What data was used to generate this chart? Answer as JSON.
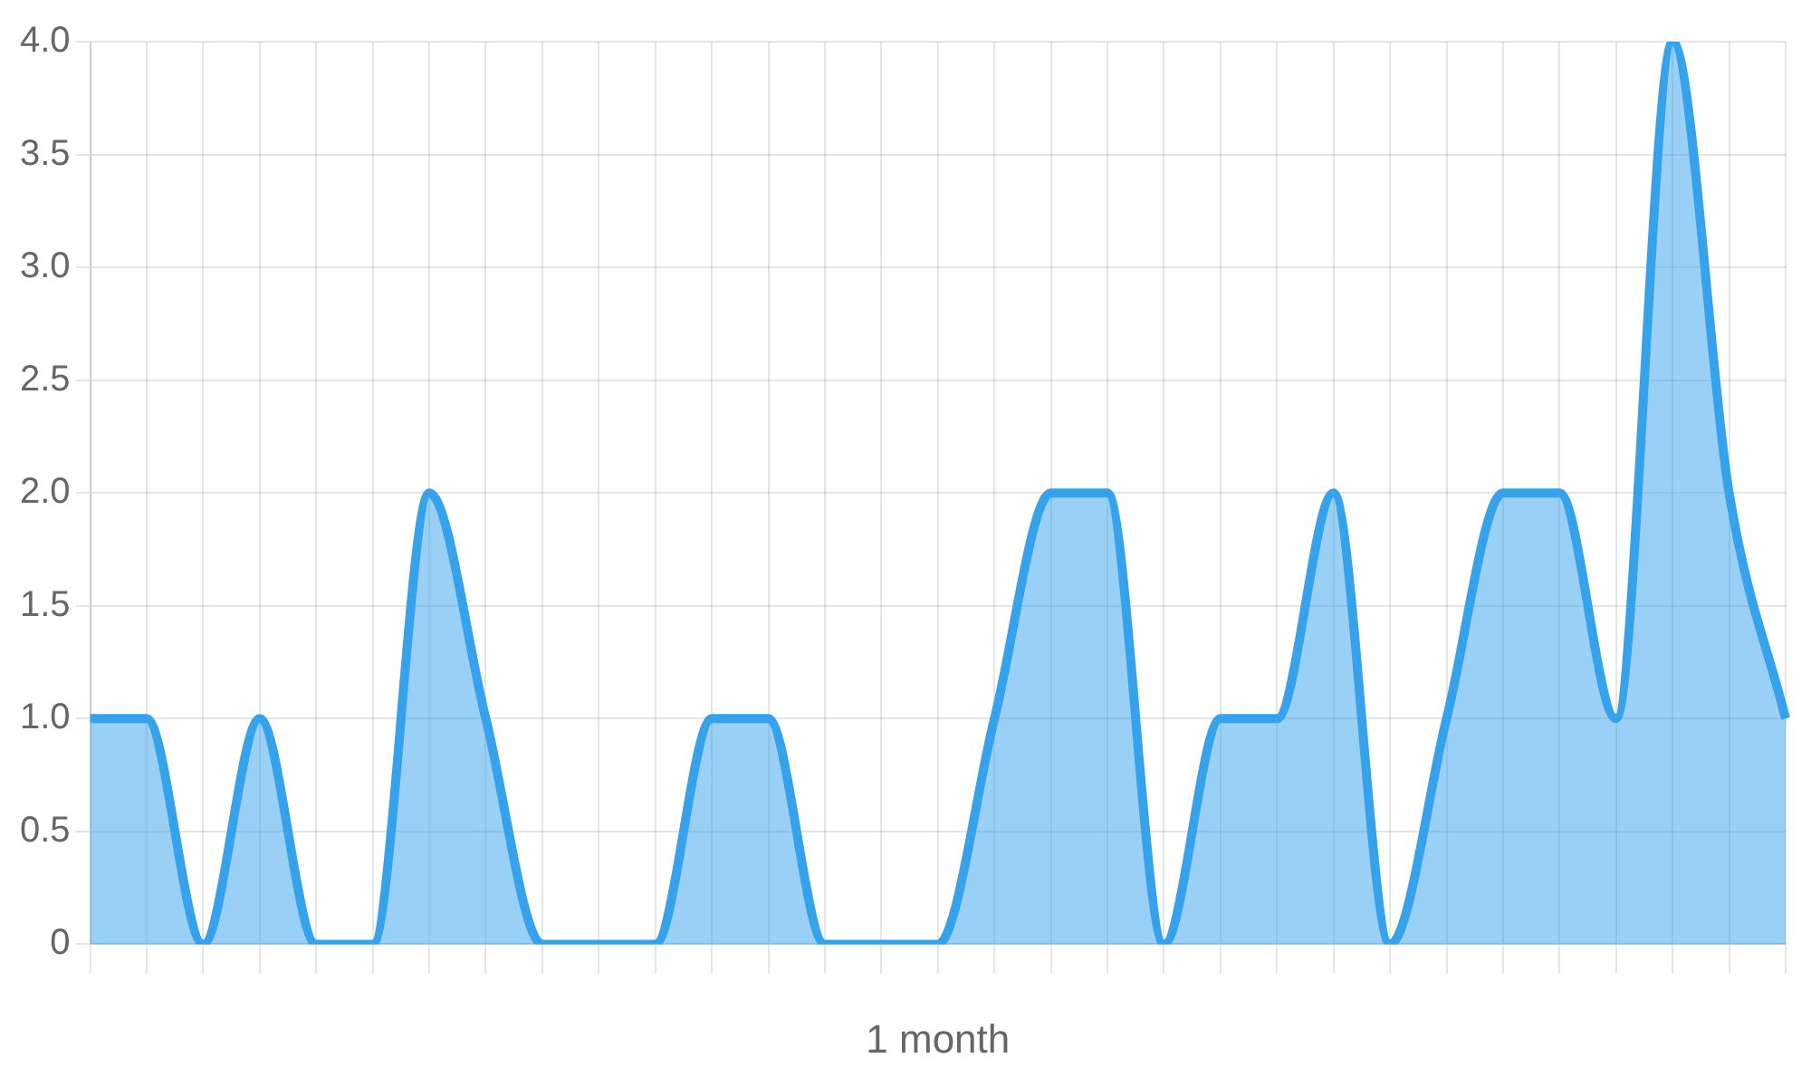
{
  "chart_data": {
    "type": "area",
    "xlabel": "1 month",
    "categories": [
      null,
      null,
      null,
      null,
      null,
      null,
      null,
      null,
      null,
      null,
      null,
      null,
      null,
      null,
      null,
      null,
      null,
      null,
      null,
      null,
      null,
      null,
      null,
      null,
      null,
      null,
      null,
      null,
      null,
      null,
      null
    ],
    "series": [
      {
        "color": "#36a2eb",
        "values": [
          1,
          1,
          0,
          1,
          0,
          0,
          2,
          1,
          0,
          0,
          0,
          1,
          1,
          0,
          0,
          0,
          1,
          2,
          2,
          0,
          1,
          1,
          2,
          0,
          1,
          2,
          2,
          1,
          4,
          2,
          1
        ]
      }
    ],
    "ylim": [
      0,
      4
    ],
    "yticks": [
      0,
      0.5,
      {
        "value": 1,
        "label": "1.0"
      },
      1.5,
      {
        "value": 2,
        "label": "2.0"
      },
      2.5,
      {
        "value": 3,
        "label": "3.0"
      },
      3.5,
      {
        "value": 4,
        "label": "4.0"
      }
    ],
    "grid": true,
    "legend": false
  }
}
